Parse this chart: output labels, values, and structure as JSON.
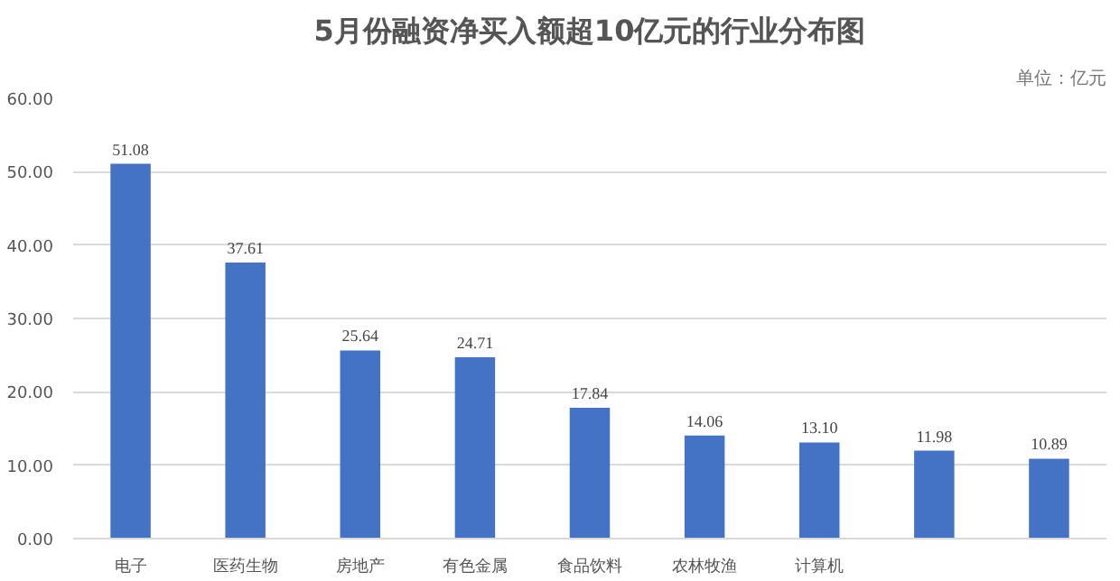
{
  "chart_data": {
    "type": "bar",
    "title": "5月份融资净买入额超10亿元的行业分布图",
    "subtitle": "单位：亿元",
    "categories": [
      "电子",
      "医药生物",
      "房地产",
      "有色金属",
      "食品饮料",
      "农林牧渔",
      "计算机",
      null,
      null
    ],
    "values": [
      51.08,
      37.61,
      25.64,
      24.71,
      17.84,
      14.06,
      13.1,
      11.98,
      10.89
    ],
    "value_labels": [
      "51.08",
      "37.61",
      "25.64",
      "24.71",
      "17.84",
      "14.06",
      "13.10",
      "11.98",
      "10.89"
    ],
    "color": "#4472c4",
    "ylim": [
      0,
      60
    ],
    "yticks": [
      {
        "value": 0,
        "label": "0.00"
      },
      {
        "value": 10,
        "label": "10.00"
      },
      {
        "value": 20,
        "label": "20.00"
      },
      {
        "value": 30,
        "label": "30.00"
      },
      {
        "value": 40,
        "label": "40.00"
      },
      {
        "value": 50,
        "label": "50.00"
      },
      {
        "value": 60,
        "label": "60.00"
      }
    ],
    "grid": "y"
  }
}
